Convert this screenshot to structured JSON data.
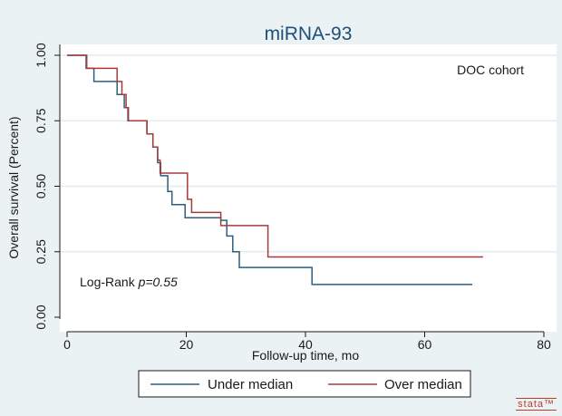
{
  "chart_data": {
    "type": "line",
    "title": "miRNA-93",
    "xlabel": "Follow-up time, mo",
    "ylabel": "Overall survival (Percent)",
    "xlim": [
      0,
      80
    ],
    "ylim": [
      0,
      1
    ],
    "xticks": [
      0,
      20,
      40,
      60,
      80
    ],
    "yticks": [
      0,
      0.25,
      0.5,
      0.75,
      1
    ],
    "ytick_labels": [
      "0.00",
      "0.25",
      "0.50",
      "0.75",
      "1.00"
    ],
    "grid": true,
    "legend_position": "bottom",
    "annotations": {
      "cohort": "DOC cohort",
      "logrank_prefix": "Log-Rank ",
      "logrank_value": "p=0.55"
    },
    "series": [
      {
        "name": "Under median",
        "color": "#2d5f7f",
        "step": true,
        "x": [
          0,
          3.2,
          4.5,
          8.4,
          9.6,
          10.2,
          10.9,
          13.4,
          14.4,
          15.2,
          15.7,
          16.9,
          17.6,
          19.8,
          25.8,
          26.8,
          27.8,
          28.9,
          41.1,
          68
        ],
        "y": [
          1.0,
          0.95,
          0.9,
          0.85,
          0.8,
          0.75,
          0.75,
          0.7,
          0.65,
          0.59,
          0.54,
          0.48,
          0.43,
          0.38,
          0.37,
          0.31,
          0.25,
          0.19,
          0.125,
          0.125
        ]
      },
      {
        "name": "Over median",
        "color": "#a93a3a",
        "step": true,
        "x": [
          0,
          3.3,
          8.4,
          9.2,
          9.9,
          10.3,
          13.4,
          14.4,
          15.2,
          15.6,
          16.1,
          20.2,
          20.9,
          25.8,
          33.7,
          69.8
        ],
        "y": [
          1.0,
          0.95,
          0.9,
          0.85,
          0.8,
          0.75,
          0.7,
          0.65,
          0.6,
          0.55,
          0.55,
          0.45,
          0.4,
          0.35,
          0.23,
          0.23
        ]
      }
    ]
  },
  "branding": {
    "logo": "stata™"
  }
}
